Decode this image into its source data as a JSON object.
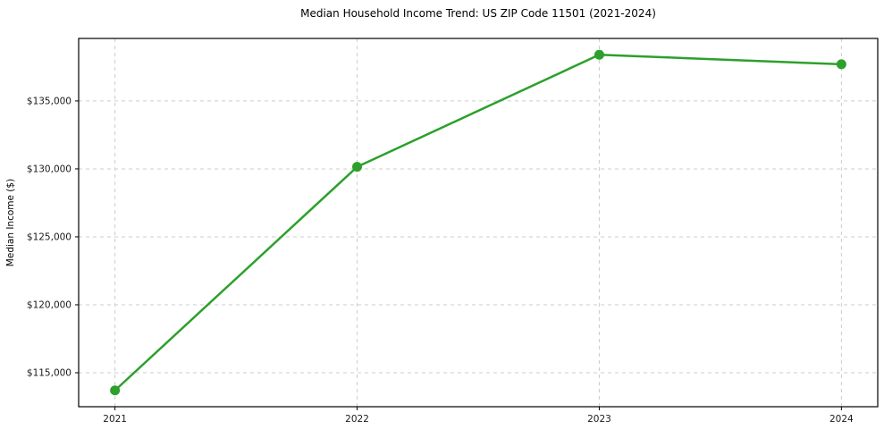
{
  "chart_data": {
    "type": "line",
    "title": "Median Household Income Trend: US ZIP Code 11501 (2021-2024)",
    "xlabel": "",
    "ylabel": "Median Income ($)",
    "categories": [
      2021,
      2022,
      2023,
      2024
    ],
    "series": [
      {
        "name": "Median Household Income",
        "values": [
          113700,
          130150,
          138400,
          137700
        ]
      }
    ],
    "yticks": [
      115000,
      120000,
      125000,
      130000,
      135000
    ],
    "ytick_labels": [
      "$115,000",
      "$120,000",
      "$125,000",
      "$130,000",
      "$135,000"
    ],
    "xtick_labels": [
      "2021",
      "2022",
      "2023",
      "2024"
    ],
    "ylim": [
      112500,
      139600
    ],
    "xlim": [
      2020.85,
      2024.15
    ],
    "grid": "dashed-both",
    "legend": "none",
    "line_color": "#2ca02c",
    "marker": "circle",
    "grid_color": "#cccccc",
    "axis_color": "#000000",
    "tick_text_color": "#1a1a1a",
    "background_color": "#ffffff"
  }
}
